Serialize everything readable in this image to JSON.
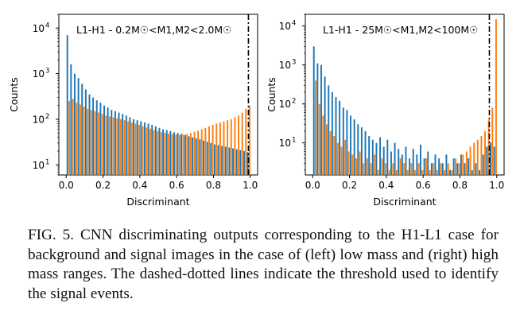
{
  "colors": {
    "background": "#1f77b4",
    "signal": "#ff7f0e",
    "threshold": "#000000"
  },
  "caption": "FIG. 5.   CNN discriminating outputs corresponding to the H1-L1 case for background and signal images in the case of (left) low mass and (right) high mass ranges. The dashed-dotted lines indicate the threshold used to identify the signal events.",
  "chart_data": [
    {
      "type": "bar",
      "title": "L1-H1 - 0.2M☉<M1,M2<2.0M☉",
      "xlabel": "Discriminant",
      "ylabel": "Counts",
      "yscale": "log",
      "xlim": [
        -0.04,
        1.04
      ],
      "ylim": [
        6,
        20000
      ],
      "xticks": [
        0.0,
        0.2,
        0.4,
        0.6,
        0.8,
        1.0
      ],
      "xticklabels": [
        "0.0",
        "0.2",
        "0.4",
        "0.6",
        "0.8",
        "1.0"
      ],
      "yticks": [
        10,
        100,
        1000,
        10000
      ],
      "yticklabels": [
        "10",
        "10",
        "10",
        "10"
      ],
      "yticksup": [
        "1",
        "2",
        "3",
        "4"
      ],
      "threshold": 0.99,
      "bin_width": 0.02,
      "series": [
        {
          "key": "background",
          "values": [
            7000,
            1600,
            1000,
            800,
            600,
            450,
            350,
            300,
            260,
            230,
            200,
            180,
            160,
            150,
            140,
            130,
            120,
            110,
            100,
            95,
            90,
            85,
            80,
            75,
            70,
            65,
            60,
            58,
            55,
            52,
            50,
            48,
            45,
            42,
            40,
            38,
            36,
            34,
            32,
            30,
            28,
            27,
            26,
            25,
            24,
            23,
            22,
            21,
            20,
            19
          ]
        },
        {
          "key": "signal",
          "values": [
            250,
            280,
            230,
            210,
            190,
            170,
            160,
            150,
            140,
            130,
            120,
            115,
            110,
            105,
            100,
            95,
            90,
            85,
            80,
            75,
            70,
            66,
            62,
            58,
            55,
            52,
            50,
            48,
            47,
            46,
            45,
            46,
            48,
            50,
            53,
            56,
            60,
            65,
            70,
            75,
            80,
            85,
            90,
            95,
            100,
            110,
            120,
            140,
            170,
            200
          ]
        }
      ]
    },
    {
      "type": "bar",
      "title": "L1-H1 - 25M☉<M1,M2<100M☉",
      "xlabel": "Discriminant",
      "ylabel": "Counts",
      "yscale": "log",
      "xlim": [
        -0.04,
        1.04
      ],
      "ylim": [
        1.5,
        20000
      ],
      "xticks": [
        0.0,
        0.2,
        0.4,
        0.6,
        0.8,
        1.0
      ],
      "xticklabels": [
        "0.0",
        "0.2",
        "0.4",
        "0.6",
        "0.8",
        "1.0"
      ],
      "yticks": [
        10,
        100,
        1000,
        10000
      ],
      "yticklabels": [
        "10",
        "10",
        "10",
        "10"
      ],
      "yticksup": [
        "1",
        "2",
        "3",
        "4"
      ],
      "threshold": 0.96,
      "bin_width": 0.02,
      "series": [
        {
          "key": "background",
          "values": [
            3000,
            1100,
            1000,
            500,
            300,
            200,
            150,
            120,
            80,
            70,
            50,
            40,
            30,
            25,
            20,
            15,
            12,
            10,
            14,
            8,
            12,
            6,
            10,
            7,
            5,
            8,
            4,
            7,
            5,
            9,
            4,
            6,
            3,
            5,
            4,
            3,
            5,
            2,
            4,
            3,
            5,
            3,
            4,
            2,
            3,
            2,
            5,
            8,
            10,
            8
          ]
        },
        {
          "key": "signal",
          "values": [
            400,
            100,
            50,
            30,
            20,
            15,
            10,
            8,
            12,
            6,
            5,
            4,
            6,
            3,
            4,
            3,
            5,
            2,
            4,
            3,
            2,
            3,
            2,
            4,
            3,
            2,
            3,
            2,
            3,
            2,
            4,
            2,
            3,
            2,
            3,
            2,
            3,
            2,
            4,
            3,
            5,
            6,
            8,
            10,
            12,
            15,
            20,
            40,
            80,
            15000
          ]
        }
      ]
    }
  ]
}
